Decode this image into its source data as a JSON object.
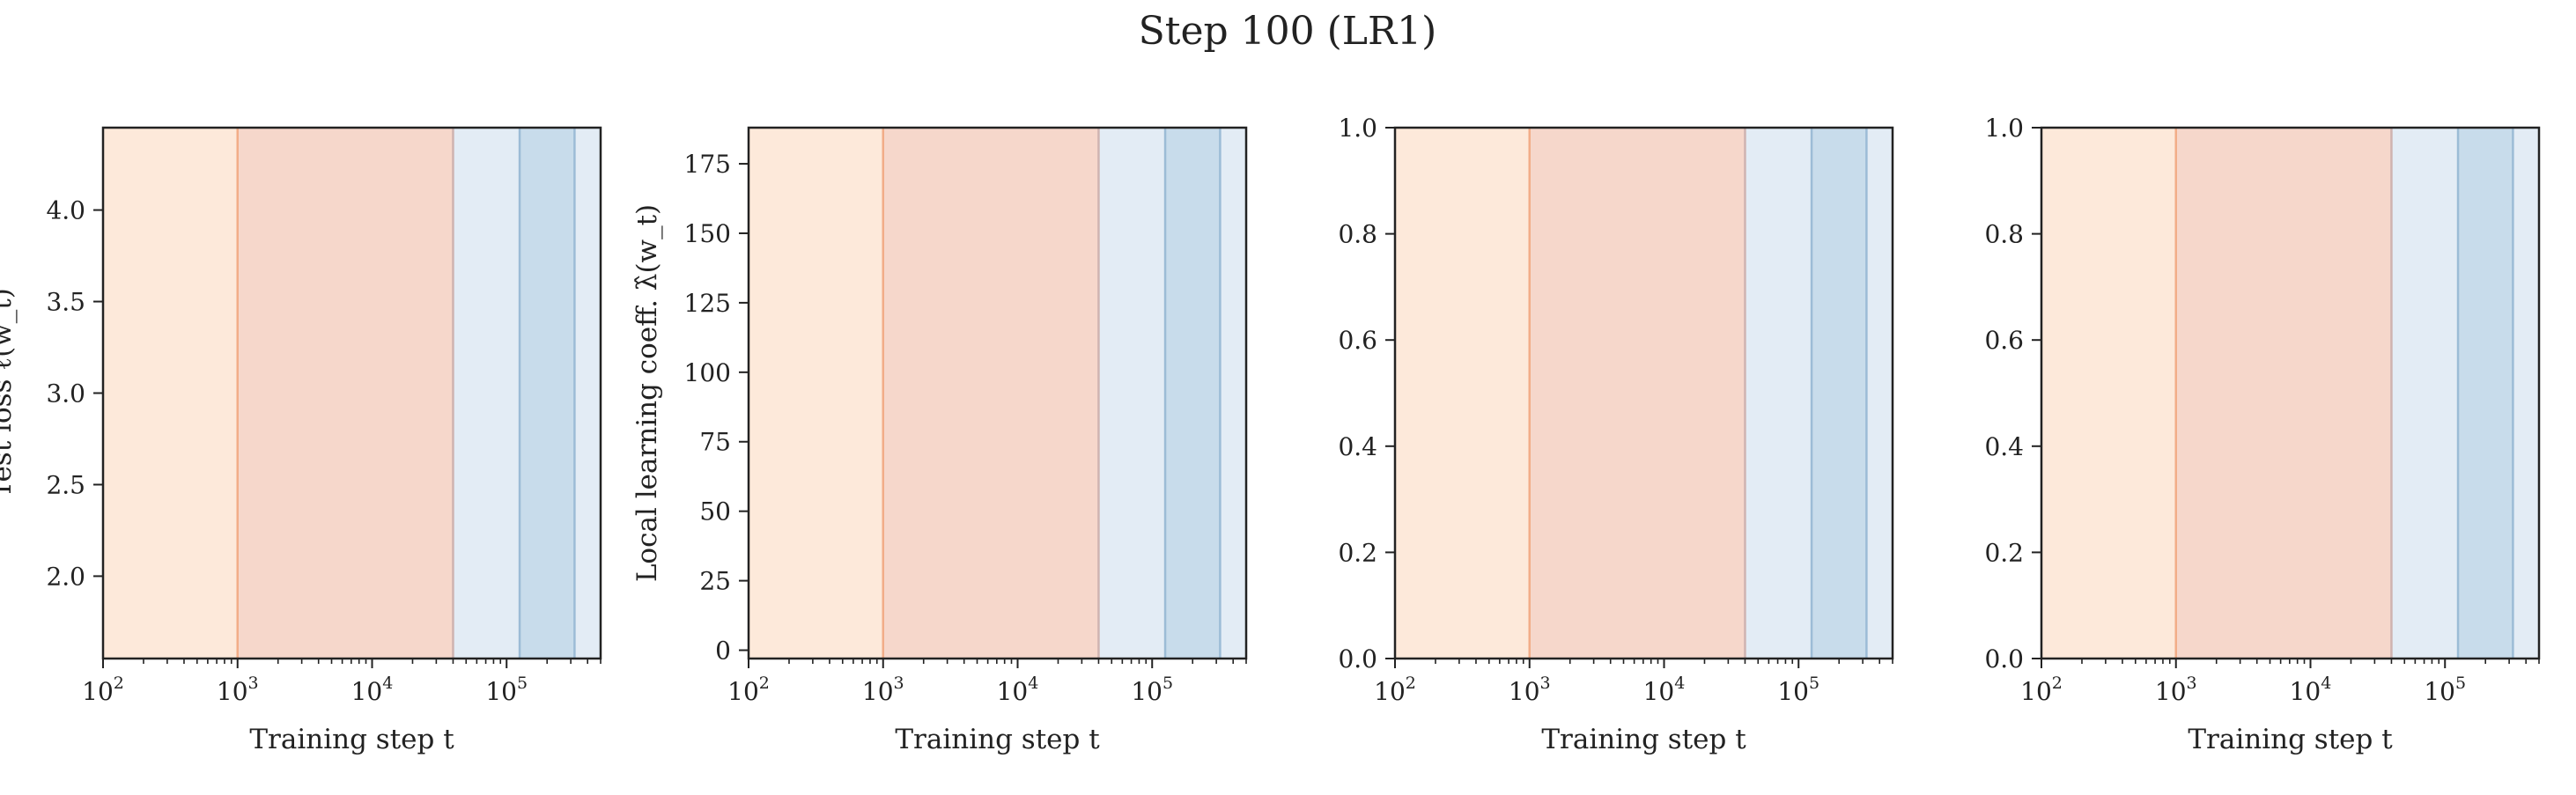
{
  "title": "Step 100 (LR1)",
  "colors": {
    "stage_fills": [
      "#fde9da",
      "#f6d7cb",
      "#e3ecf5",
      "#c8dceb",
      "#e3ecf5"
    ],
    "boundary_lines": [
      "#f2ad88",
      "#cfb3b0",
      "#9cbcd6",
      "#9cbcd6"
    ],
    "axis": "#222222"
  },
  "chart_data": [
    {
      "type": "line",
      "title": "",
      "xlabel": "Training step t",
      "ylabel": "Test loss ℓ̂(w_t)",
      "xscale": "log",
      "xlim": [
        100,
        500000
      ],
      "ylim": [
        1.55,
        4.45
      ],
      "x_ticks": [
        {
          "base": "10",
          "exp": "2",
          "value": 100
        },
        {
          "base": "10",
          "exp": "3",
          "value": 1000
        },
        {
          "base": "10",
          "exp": "4",
          "value": 10000
        },
        {
          "base": "10",
          "exp": "5",
          "value": 100000
        }
      ],
      "y_ticks": [
        {
          "label": "2.0",
          "value": 2.0
        },
        {
          "label": "2.5",
          "value": 2.5
        },
        {
          "label": "3.0",
          "value": 3.0
        },
        {
          "label": "3.5",
          "value": 3.5
        },
        {
          "label": "4.0",
          "value": 4.0
        }
      ],
      "stage_boundaries": [
        1000,
        40000,
        125000,
        320000
      ],
      "series": []
    },
    {
      "type": "line",
      "title": "",
      "xlabel": "Training step t",
      "ylabel": "Local learning coeff. λ̂(w_t)",
      "xscale": "log",
      "xlim": [
        100,
        500000
      ],
      "ylim": [
        -3,
        188
      ],
      "x_ticks": [
        {
          "base": "10",
          "exp": "2",
          "value": 100
        },
        {
          "base": "10",
          "exp": "3",
          "value": 1000
        },
        {
          "base": "10",
          "exp": "4",
          "value": 10000
        },
        {
          "base": "10",
          "exp": "5",
          "value": 100000
        }
      ],
      "y_ticks": [
        {
          "label": "0",
          "value": 0
        },
        {
          "label": "25",
          "value": 25
        },
        {
          "label": "50",
          "value": 50
        },
        {
          "label": "75",
          "value": 75
        },
        {
          "label": "100",
          "value": 100
        },
        {
          "label": "125",
          "value": 125
        },
        {
          "label": "150",
          "value": 150
        },
        {
          "label": "175",
          "value": 175
        }
      ],
      "stage_boundaries": [
        1000,
        40000,
        125000,
        320000
      ],
      "series": []
    },
    {
      "type": "line",
      "title": "",
      "xlabel": "Training step t",
      "ylabel": "",
      "xscale": "log",
      "xlim": [
        100,
        500000
      ],
      "ylim": [
        0,
        1
      ],
      "x_ticks": [
        {
          "base": "10",
          "exp": "2",
          "value": 100
        },
        {
          "base": "10",
          "exp": "3",
          "value": 1000
        },
        {
          "base": "10",
          "exp": "4",
          "value": 10000
        },
        {
          "base": "10",
          "exp": "5",
          "value": 100000
        }
      ],
      "y_ticks": [
        {
          "label": "0.0",
          "value": 0.0
        },
        {
          "label": "0.2",
          "value": 0.2
        },
        {
          "label": "0.4",
          "value": 0.4
        },
        {
          "label": "0.6",
          "value": 0.6
        },
        {
          "label": "0.8",
          "value": 0.8
        },
        {
          "label": "1.0",
          "value": 1.0
        }
      ],
      "stage_boundaries": [
        1000,
        40000,
        125000,
        320000
      ],
      "series": []
    },
    {
      "type": "line",
      "title": "",
      "xlabel": "Training step t",
      "ylabel": "",
      "xscale": "log",
      "xlim": [
        100,
        500000
      ],
      "ylim": [
        0,
        1
      ],
      "x_ticks": [
        {
          "base": "10",
          "exp": "2",
          "value": 100
        },
        {
          "base": "10",
          "exp": "3",
          "value": 1000
        },
        {
          "base": "10",
          "exp": "4",
          "value": 10000
        },
        {
          "base": "10",
          "exp": "5",
          "value": 100000
        }
      ],
      "y_ticks": [
        {
          "label": "0.0",
          "value": 0.0
        },
        {
          "label": "0.2",
          "value": 0.2
        },
        {
          "label": "0.4",
          "value": 0.4
        },
        {
          "label": "0.6",
          "value": 0.6
        },
        {
          "label": "0.8",
          "value": 0.8
        },
        {
          "label": "1.0",
          "value": 1.0
        }
      ],
      "stage_boundaries": [
        1000,
        40000,
        125000,
        320000
      ],
      "series": []
    }
  ]
}
